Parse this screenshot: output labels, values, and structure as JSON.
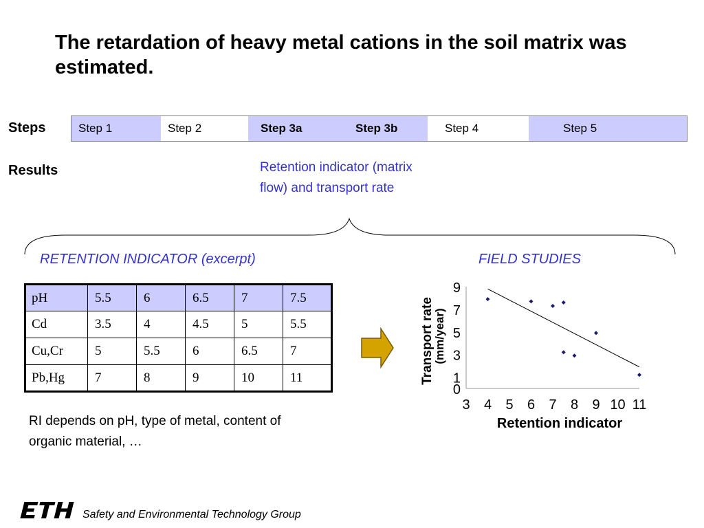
{
  "title": "The retardation of heavy metal cations in the soil matrix was estimated.",
  "labels": {
    "steps": "Steps",
    "results": "Results"
  },
  "steps": [
    {
      "label": "Step 1",
      "bold": false,
      "bg": "#ccccff"
    },
    {
      "label": "Step 2",
      "bold": false,
      "bg": "#ffffff"
    },
    {
      "label": "Step 3a",
      "bold": true,
      "bg": "#ccccff"
    },
    {
      "label": "Step 3b",
      "bold": true,
      "bg": "#ccccff"
    },
    {
      "label": "Step 4",
      "bold": false,
      "bg": "#ffffff"
    },
    {
      "label": "Step 5",
      "bold": false,
      "bg": "#ccccff"
    }
  ],
  "retention_result": "Retention indicator (matrix flow) and transport rate",
  "retention_heading": "RETENTION INDICATOR (excerpt)",
  "field_heading": "FIELD STUDIES",
  "table": {
    "rows": [
      [
        "pH",
        "5.5",
        "6",
        "6.5",
        "7",
        "7.5"
      ],
      [
        "Cd",
        "3.5",
        "4",
        "4.5",
        "5",
        "5.5"
      ],
      [
        "Cu,Cr",
        "5",
        "5.5",
        "6",
        "6.5",
        "7"
      ],
      [
        "Pb,Hg",
        "7",
        "8",
        "9",
        "10",
        "11"
      ]
    ]
  },
  "ri_note": "RI depends on pH, type of metal, content of organic material, …",
  "footer": {
    "logo": "ETH",
    "group": "Safety and Environmental Technology Group"
  },
  "colors": {
    "accent_text": "#3333cc",
    "highlight": "#ccccff",
    "arrow": "#d4a300",
    "points": "#1a1a6e"
  },
  "chart_data": {
    "type": "scatter",
    "xlabel": "Retention indicator",
    "ylabel": "Transport rate",
    "ylabel2": "(mm/year)",
    "x_ticks": [
      "3",
      "4",
      "5",
      "6",
      "7",
      "8",
      "9",
      "10",
      "11"
    ],
    "y_ticks": [
      "0",
      "1",
      "3",
      "5",
      "7",
      "9"
    ],
    "xlim": [
      3,
      11
    ],
    "ylim": [
      0,
      9
    ],
    "points": [
      {
        "x": 4,
        "y": 7.9
      },
      {
        "x": 6,
        "y": 7.7
      },
      {
        "x": 7,
        "y": 7.3
      },
      {
        "x": 7.5,
        "y": 7.6
      },
      {
        "x": 9,
        "y": 4.9
      },
      {
        "x": 7.5,
        "y": 3.2
      },
      {
        "x": 8,
        "y": 2.9
      },
      {
        "x": 11,
        "y": 1.2
      }
    ],
    "trendline": {
      "x": [
        4,
        11
      ],
      "y": [
        8.8,
        1.9
      ]
    }
  }
}
